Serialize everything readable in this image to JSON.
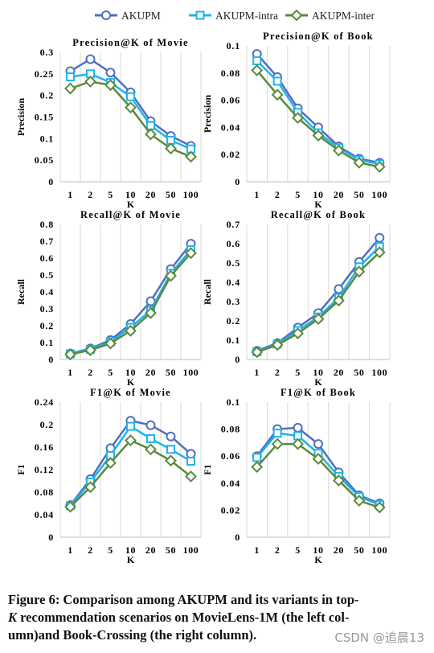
{
  "legend": [
    {
      "name": "AKUPM",
      "color": "#4f6fbf",
      "marker": "circle"
    },
    {
      "name": "AKUPM-intra",
      "color": "#1fb4ec",
      "marker": "square"
    },
    {
      "name": "AKUPM-inter",
      "color": "#5a8a3a",
      "marker": "diamond"
    }
  ],
  "caption": {
    "line1": "Figure 6: Comparison among AKUPM and its variants in top-",
    "k": "K",
    "line2": " recommendation scenarios on MovieLens-1M (the left col-",
    "line3": "umn)and Book-Crossing (the right column)."
  },
  "watermark": "CSDN @追晨13",
  "chart_data": [
    {
      "type": "line",
      "title": "Precision@K of Movie",
      "xlabel": "K",
      "ylabel": "Precision",
      "categories": [
        "1",
        "2",
        "5",
        "10",
        "20",
        "50",
        "100"
      ],
      "yticks": [
        "0",
        "0.05",
        "0.1",
        "0.15",
        "0.2",
        "0.25",
        "0.3"
      ],
      "ylim": [
        0,
        0.3
      ],
      "grid": "vertical",
      "series": [
        {
          "name": "AKUPM",
          "values": [
            0.256,
            0.284,
            0.253,
            0.207,
            0.14,
            0.106,
            0.083
          ]
        },
        {
          "name": "AKUPM-intra",
          "values": [
            0.243,
            0.25,
            0.23,
            0.197,
            0.13,
            0.096,
            0.076
          ]
        },
        {
          "name": "AKUPM-inter",
          "values": [
            0.216,
            0.232,
            0.224,
            0.172,
            0.11,
            0.077,
            0.058
          ]
        }
      ]
    },
    {
      "type": "line",
      "title": "Precision@K of Book",
      "xlabel": "K",
      "ylabel": "Precision",
      "categories": [
        "1",
        "2",
        "5",
        "10",
        "20",
        "50",
        "100"
      ],
      "yticks": [
        "0",
        "0.02",
        "0.04",
        "0.06",
        "0.08",
        "0.1"
      ],
      "ylim": [
        0,
        0.1
      ],
      "grid": "vertical",
      "series": [
        {
          "name": "AKUPM",
          "values": [
            0.094,
            0.077,
            0.054,
            0.04,
            0.026,
            0.017,
            0.014
          ]
        },
        {
          "name": "AKUPM-intra",
          "values": [
            0.089,
            0.074,
            0.051,
            0.036,
            0.025,
            0.016,
            0.013
          ]
        },
        {
          "name": "AKUPM-inter",
          "values": [
            0.082,
            0.064,
            0.047,
            0.034,
            0.023,
            0.014,
            0.011
          ]
        }
      ]
    },
    {
      "type": "line",
      "title": "Recall@K of Movie",
      "xlabel": "K",
      "ylabel": "Recall",
      "categories": [
        "1",
        "2",
        "5",
        "10",
        "20",
        "50",
        "100"
      ],
      "yticks": [
        "0",
        "0.1",
        "0.2",
        "0.3",
        "0.4",
        "0.5",
        "0.6",
        "0.7",
        "0.8"
      ],
      "ylim": [
        0,
        0.8
      ],
      "grid": "vertical",
      "series": [
        {
          "name": "AKUPM",
          "values": [
            0.035,
            0.065,
            0.115,
            0.21,
            0.345,
            0.535,
            0.685
          ]
        },
        {
          "name": "AKUPM-intra",
          "values": [
            0.033,
            0.06,
            0.105,
            0.19,
            0.29,
            0.51,
            0.65
          ]
        },
        {
          "name": "AKUPM-inter",
          "values": [
            0.03,
            0.055,
            0.095,
            0.17,
            0.275,
            0.495,
            0.63
          ]
        }
      ]
    },
    {
      "type": "line",
      "title": "Recall@K of Book",
      "xlabel": "K",
      "ylabel": "Recall",
      "categories": [
        "1",
        "2",
        "5",
        "10",
        "20",
        "50",
        "100"
      ],
      "yticks": [
        "0",
        "0.1",
        "0.2",
        "0.3",
        "0.4",
        "0.5",
        "0.6",
        "0.7"
      ],
      "ylim": [
        0,
        0.7
      ],
      "grid": "vertical",
      "series": [
        {
          "name": "AKUPM",
          "values": [
            0.045,
            0.085,
            0.165,
            0.24,
            0.365,
            0.505,
            0.63
          ]
        },
        {
          "name": "AKUPM-intra",
          "values": [
            0.04,
            0.08,
            0.15,
            0.22,
            0.32,
            0.48,
            0.585
          ]
        },
        {
          "name": "AKUPM-inter",
          "values": [
            0.038,
            0.075,
            0.135,
            0.21,
            0.305,
            0.455,
            0.555
          ]
        }
      ]
    },
    {
      "type": "line",
      "title": "F1@K of Movie",
      "xlabel": "K",
      "ylabel": "F1",
      "categories": [
        "1",
        "2",
        "5",
        "10",
        "20",
        "50",
        "100"
      ],
      "yticks": [
        "0",
        "0.04",
        "0.08",
        "0.12",
        "0.16",
        "0.2",
        "0.24"
      ],
      "ylim": [
        0,
        0.24
      ],
      "grid": "vertical",
      "series": [
        {
          "name": "AKUPM",
          "values": [
            0.057,
            0.103,
            0.158,
            0.207,
            0.199,
            0.179,
            0.148
          ]
        },
        {
          "name": "AKUPM-intra",
          "values": [
            0.056,
            0.098,
            0.145,
            0.197,
            0.175,
            0.156,
            0.135
          ]
        },
        {
          "name": "AKUPM-inter",
          "values": [
            0.054,
            0.089,
            0.132,
            0.172,
            0.156,
            0.136,
            0.108
          ]
        }
      ]
    },
    {
      "type": "line",
      "title": "F1@K of Book",
      "xlabel": "K",
      "ylabel": "F1",
      "categories": [
        "1",
        "2",
        "5",
        "10",
        "20",
        "50",
        "100"
      ],
      "yticks": [
        "0",
        "0.02",
        "0.04",
        "0.06",
        "0.08",
        "0.1"
      ],
      "ylim": [
        0,
        0.1
      ],
      "grid": "vertical",
      "series": [
        {
          "name": "AKUPM",
          "values": [
            0.06,
            0.08,
            0.081,
            0.069,
            0.048,
            0.031,
            0.025
          ]
        },
        {
          "name": "AKUPM-intra",
          "values": [
            0.059,
            0.077,
            0.075,
            0.062,
            0.045,
            0.03,
            0.024
          ]
        },
        {
          "name": "AKUPM-inter",
          "values": [
            0.052,
            0.069,
            0.069,
            0.058,
            0.042,
            0.027,
            0.022
          ]
        }
      ]
    }
  ]
}
